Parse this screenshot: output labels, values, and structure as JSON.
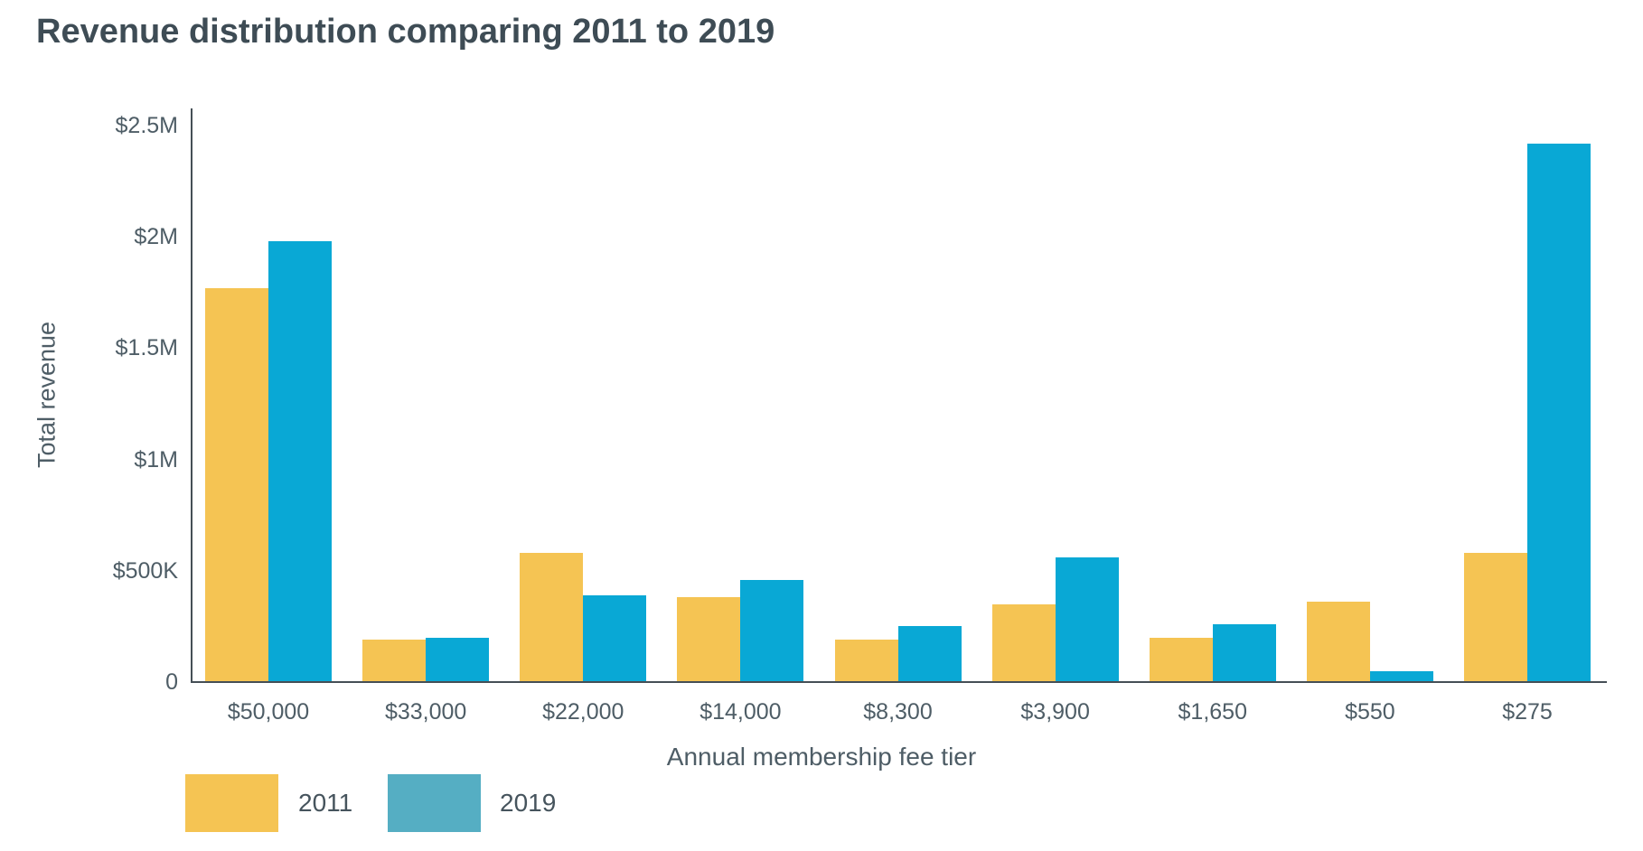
{
  "title": "Revenue distribution comparing 2011 to 2019",
  "chart_data": {
    "type": "bar",
    "title": "Revenue distribution comparing 2011 to 2019",
    "xlabel": "Annual membership fee tier",
    "ylabel": "Total revenue",
    "categories": [
      "$50,000",
      "$33,000",
      "$22,000",
      "$14,000",
      "$8,300",
      "$3,900",
      "$1,650",
      "$550",
      "$275"
    ],
    "series": [
      {
        "name": "2011",
        "color": "#f5c453",
        "values": [
          1.77,
          0.19,
          0.58,
          0.38,
          0.19,
          0.35,
          0.2,
          0.36,
          0.58
        ]
      },
      {
        "name": "2019",
        "color": "#09a8d5",
        "values": [
          1.98,
          0.2,
          0.39,
          0.46,
          0.25,
          0.56,
          0.26,
          0.05,
          2.42
        ]
      }
    ],
    "values_unit": "millions of dollars",
    "ylim": [
      0,
      2.5
    ],
    "y_ticks": [
      {
        "value": 0,
        "label": "0"
      },
      {
        "value": 0.5,
        "label": "$500K"
      },
      {
        "value": 1,
        "label": "$1M"
      },
      {
        "value": 1.5,
        "label": "$1.5M"
      },
      {
        "value": 2,
        "label": "$2M"
      },
      {
        "value": 2.5,
        "label": "$2.5M"
      }
    ],
    "grid": false,
    "legend_position": "bottom-left",
    "legend": [
      {
        "label": "2011",
        "color": "#f5c453"
      },
      {
        "label": "2019",
        "color": "#55aec3"
      }
    ]
  },
  "colors": {
    "bar_2011": "#f5c453",
    "bar_2019": "#09a8d5",
    "legend_swatch_2019": "#55aec3",
    "title_text": "#3e4c55",
    "axis_text": "#4e5d66",
    "axis_line": "#454f56"
  }
}
